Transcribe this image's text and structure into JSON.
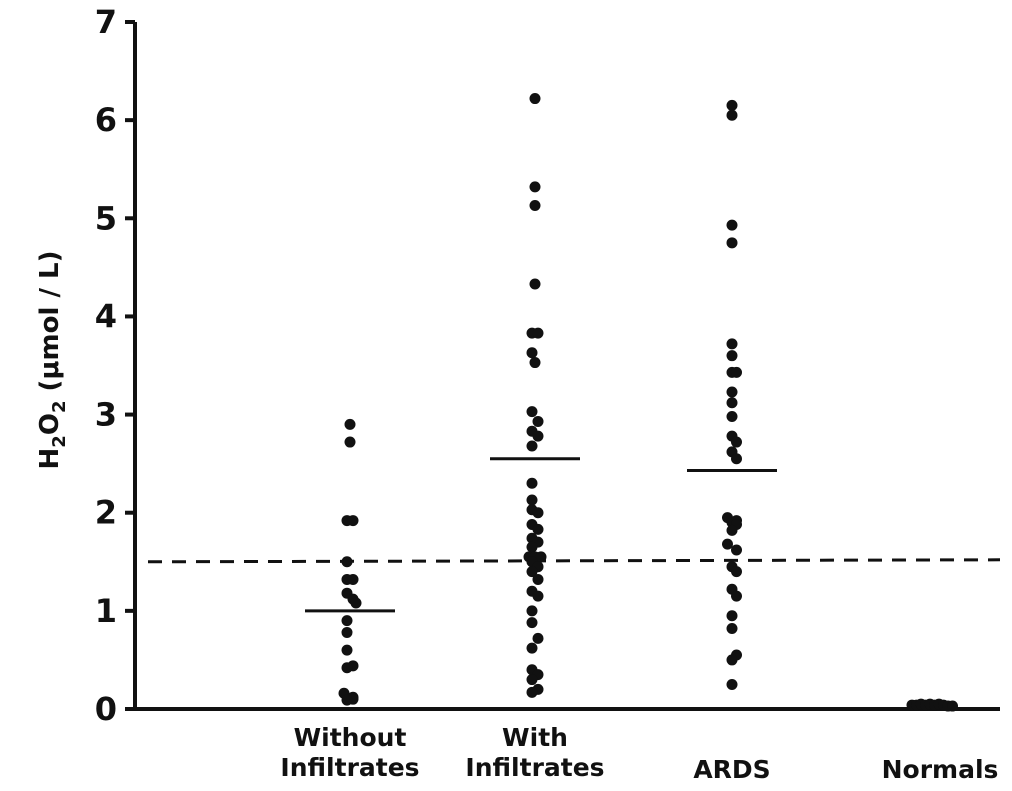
{
  "chart_data": {
    "type": "scatter",
    "title": "",
    "xlabel": "",
    "ylabel_parts": [
      "H",
      "2",
      "O",
      "2",
      "  (μmol / L)"
    ],
    "ylim": [
      0,
      7
    ],
    "yticks": [
      0,
      1,
      2,
      3,
      4,
      5,
      6,
      7
    ],
    "grid": false,
    "categories": [
      [
        "Without",
        "Infiltrates"
      ],
      [
        "With",
        "Infiltrates"
      ],
      [
        "ARDS"
      ],
      [
        "Normals"
      ]
    ],
    "reference_line": {
      "y": 1.5,
      "style": "dashed"
    },
    "groups": [
      {
        "mean": 1.0,
        "points": [
          [
            0,
            2.9
          ],
          [
            0,
            2.72
          ],
          [
            -0.02,
            1.92
          ],
          [
            0.02,
            1.92
          ],
          [
            -0.02,
            1.5
          ],
          [
            -0.02,
            1.32
          ],
          [
            0.02,
            1.32
          ],
          [
            -0.02,
            1.18
          ],
          [
            0.02,
            1.12
          ],
          [
            0.04,
            1.08
          ],
          [
            -0.02,
            0.9
          ],
          [
            -0.02,
            0.78
          ],
          [
            -0.02,
            0.6
          ],
          [
            0.02,
            0.44
          ],
          [
            -0.02,
            0.42
          ],
          [
            -0.04,
            0.16
          ],
          [
            0.02,
            0.12
          ],
          [
            0.02,
            0.1
          ],
          [
            -0.02,
            0.09
          ]
        ]
      },
      {
        "mean": 2.55,
        "points": [
          [
            0,
            6.22
          ],
          [
            0,
            5.32
          ],
          [
            0,
            5.13
          ],
          [
            0,
            4.33
          ],
          [
            -0.02,
            3.83
          ],
          [
            0.02,
            3.83
          ],
          [
            -0.02,
            3.63
          ],
          [
            0,
            3.53
          ],
          [
            -0.02,
            3.03
          ],
          [
            0.02,
            2.93
          ],
          [
            -0.02,
            2.83
          ],
          [
            0.02,
            2.78
          ],
          [
            -0.02,
            2.68
          ],
          [
            -0.02,
            2.3
          ],
          [
            -0.02,
            2.13
          ],
          [
            -0.02,
            2.03
          ],
          [
            0.02,
            2.0
          ],
          [
            -0.02,
            1.88
          ],
          [
            0.02,
            1.83
          ],
          [
            -0.02,
            1.74
          ],
          [
            0.02,
            1.7
          ],
          [
            -0.02,
            1.65
          ],
          [
            -0.04,
            1.55
          ],
          [
            0,
            1.55
          ],
          [
            0.04,
            1.55
          ],
          [
            -0.02,
            1.5
          ],
          [
            0.02,
            1.45
          ],
          [
            -0.02,
            1.4
          ],
          [
            0.02,
            1.32
          ],
          [
            -0.02,
            1.2
          ],
          [
            0.02,
            1.15
          ],
          [
            -0.02,
            1.0
          ],
          [
            -0.02,
            0.88
          ],
          [
            0.02,
            0.72
          ],
          [
            -0.02,
            0.62
          ],
          [
            -0.02,
            0.4
          ],
          [
            0.02,
            0.35
          ],
          [
            -0.02,
            0.3
          ],
          [
            0.02,
            0.2
          ],
          [
            -0.02,
            0.17
          ]
        ]
      },
      {
        "mean": 2.43,
        "points": [
          [
            0,
            6.15
          ],
          [
            0,
            6.05
          ],
          [
            0,
            4.93
          ],
          [
            0,
            4.75
          ],
          [
            0,
            3.72
          ],
          [
            0,
            3.6
          ],
          [
            0,
            3.43
          ],
          [
            0.03,
            3.43
          ],
          [
            0,
            3.23
          ],
          [
            0,
            3.12
          ],
          [
            0,
            2.98
          ],
          [
            0,
            2.78
          ],
          [
            0.03,
            2.72
          ],
          [
            0,
            2.62
          ],
          [
            0.03,
            2.55
          ],
          [
            -0.03,
            1.95
          ],
          [
            0,
            1.9
          ],
          [
            0.03,
            1.92
          ],
          [
            0.03,
            1.88
          ],
          [
            0,
            1.82
          ],
          [
            -0.03,
            1.68
          ],
          [
            0.03,
            1.62
          ],
          [
            0,
            1.45
          ],
          [
            0.03,
            1.4
          ],
          [
            0,
            1.22
          ],
          [
            0.03,
            1.15
          ],
          [
            0,
            0.95
          ],
          [
            0,
            0.82
          ],
          [
            0.03,
            0.55
          ],
          [
            0,
            0.5
          ],
          [
            0,
            0.25
          ]
        ]
      },
      {
        "mean": null,
        "points": [
          [
            -0.12,
            0.04
          ],
          [
            -0.09,
            0.04
          ],
          [
            -0.06,
            0.05
          ],
          [
            -0.03,
            0.04
          ],
          [
            0,
            0.05
          ],
          [
            0.03,
            0.04
          ],
          [
            0.06,
            0.05
          ],
          [
            0.09,
            0.04
          ],
          [
            0.12,
            0.03
          ],
          [
            0.15,
            0.03
          ]
        ]
      }
    ]
  }
}
